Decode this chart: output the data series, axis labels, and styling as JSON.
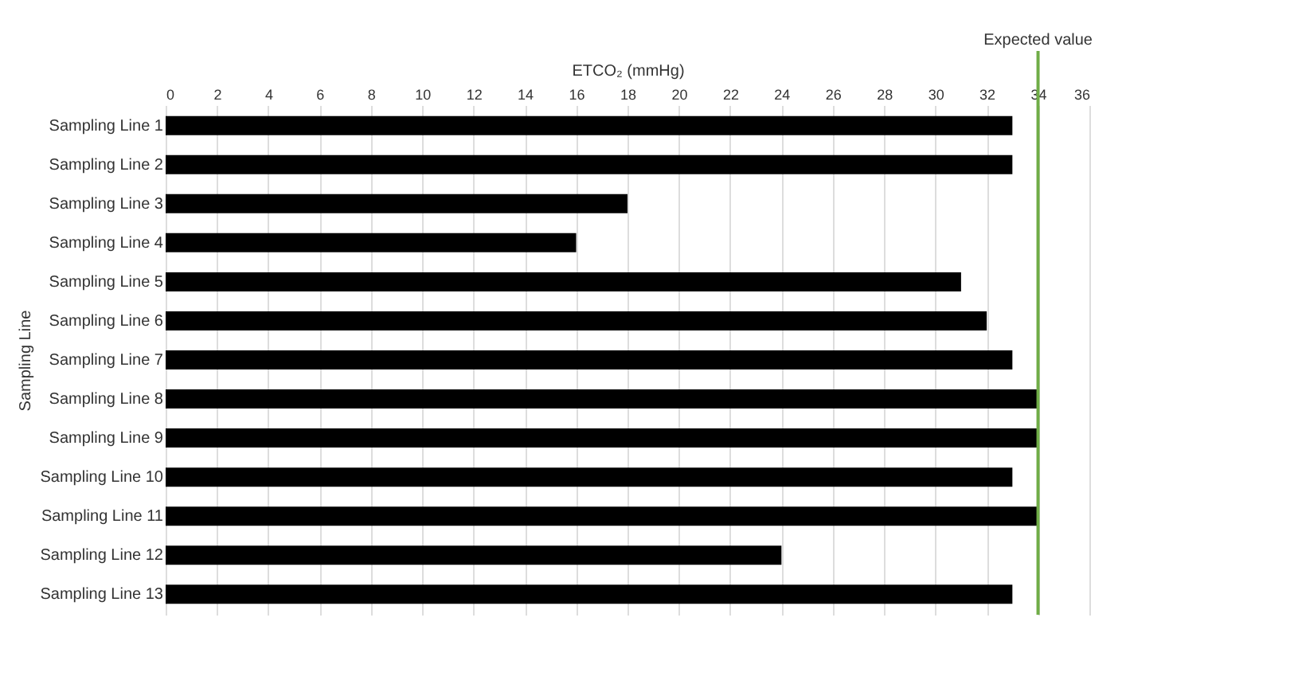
{
  "chart_data": {
    "type": "bar",
    "orientation": "horizontal",
    "xlabel": "ETCO₂ (mmHg)",
    "ylabel": "Sampling Line",
    "categories": [
      "Sampling Line 1",
      "Sampling Line 2",
      "Sampling Line 3",
      "Sampling Line 4",
      "Sampling Line 5",
      "Sampling Line 6",
      "Sampling Line 7",
      "Sampling Line 8",
      "Sampling Line 9",
      "Sampling Line 10",
      "Sampling Line 11",
      "Sampling Line 12",
      "Sampling Line 13"
    ],
    "values": [
      33,
      33,
      18,
      16,
      31,
      32,
      33,
      34,
      34,
      33,
      34,
      24,
      33
    ],
    "color": "#000000",
    "xlim": [
      0,
      36
    ],
    "xticks": [
      0,
      2,
      4,
      6,
      8,
      10,
      12,
      14,
      16,
      18,
      20,
      22,
      24,
      26,
      28,
      30,
      32,
      34,
      36
    ],
    "grid": "x",
    "ref_lines": [
      {
        "axis": "x",
        "value": 34,
        "label": "Expected value",
        "color": "#70ad47"
      }
    ]
  }
}
